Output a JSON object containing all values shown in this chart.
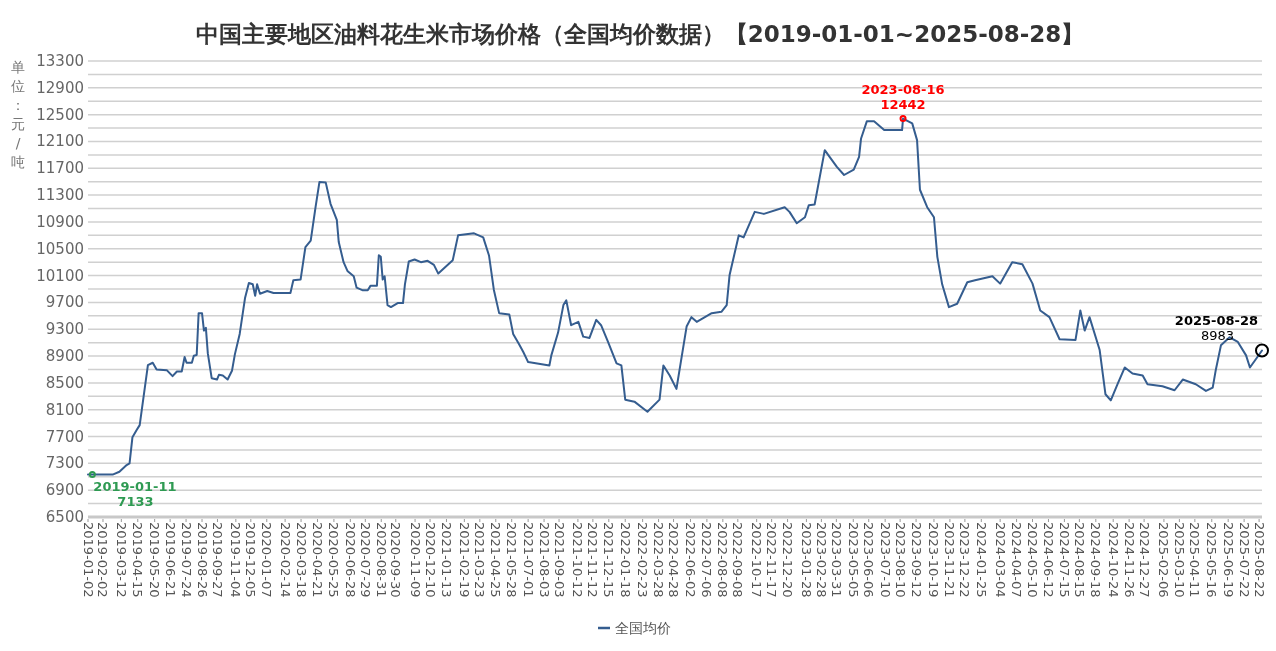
{
  "chart_data": {
    "type": "line",
    "title": "中国主要地区油料花生米市场价格（全国均价数据）【2019-01-01~2025-08-28】",
    "ylabel": "单位：元/吨",
    "x": [
      "2019-01-02",
      "2019-01-11",
      "2019-02-22",
      "2019-03-08",
      "2019-03-23",
      "2019-03-29",
      "2019-04-04",
      "2019-04-13",
      "2019-04-19",
      "2019-05-06",
      "2019-05-16",
      "2019-05-24",
      "2019-06-14",
      "2019-06-26",
      "2019-07-05",
      "2019-07-15",
      "2019-07-21",
      "2019-07-25",
      "2019-08-05",
      "2019-08-09",
      "2019-08-15",
      "2019-08-19",
      "2019-08-26",
      "2019-08-30",
      "2019-09-03",
      "2019-09-07",
      "2019-09-15",
      "2019-09-26",
      "2019-09-30",
      "2019-10-08",
      "2019-10-18",
      "2019-10-27",
      "2019-11-02",
      "2019-11-12",
      "2019-11-23",
      "2019-12-01",
      "2019-12-09",
      "2019-12-14",
      "2019-12-18",
      "2019-12-24",
      "2020-01-08",
      "2020-01-21",
      "2020-02-25",
      "2020-03-02",
      "2020-03-17",
      "2020-03-27",
      "2020-04-07",
      "2020-04-17",
      "2020-04-25",
      "2020-05-08",
      "2020-05-18",
      "2020-05-31",
      "2020-06-04",
      "2020-06-14",
      "2020-06-22",
      "2020-07-05",
      "2020-07-11",
      "2020-07-24",
      "2020-08-03",
      "2020-08-09",
      "2020-08-22",
      "2020-08-26",
      "2020-08-30",
      "2020-09-03",
      "2020-09-07",
      "2020-09-13",
      "2020-09-20",
      "2020-10-04",
      "2020-10-15",
      "2020-10-19",
      "2020-10-27",
      "2020-11-08",
      "2020-11-21",
      "2020-12-05",
      "2020-12-18",
      "2020-12-27",
      "2021-01-26",
      "2021-02-06",
      "2021-03-11",
      "2021-03-30",
      "2021-04-11",
      "2021-04-21",
      "2021-05-02",
      "2021-05-23",
      "2021-05-31",
      "2021-06-12",
      "2021-06-21",
      "2021-07-01",
      "2021-08-14",
      "2021-08-18",
      "2021-09-01",
      "2021-09-12",
      "2021-09-18",
      "2021-09-28",
      "2021-10-13",
      "2021-10-23",
      "2021-11-05",
      "2021-11-19",
      "2021-11-29",
      "2021-12-14",
      "2021-12-31",
      "2022-01-10",
      "2022-01-18",
      "2022-02-06",
      "2022-03-05",
      "2022-03-30",
      "2022-04-07",
      "2022-04-20",
      "2022-05-04",
      "2022-05-25",
      "2022-06-04",
      "2022-06-15",
      "2022-07-16",
      "2022-08-05",
      "2022-08-16",
      "2022-08-22",
      "2022-09-10",
      "2022-09-20",
      "2022-10-13",
      "2022-11-01",
      "2022-12-14",
      "2022-12-24",
      "2023-01-08",
      "2023-01-25",
      "2023-02-02",
      "2023-02-14",
      "2023-03-07",
      "2023-03-17",
      "2023-04-01",
      "2023-04-16",
      "2023-05-06",
      "2023-05-17",
      "2023-05-21",
      "2023-06-02",
      "2023-06-17",
      "2023-07-08",
      "2023-08-14",
      "2023-08-16",
      "2023-09-04",
      "2023-09-14",
      "2023-09-20",
      "2023-10-05",
      "2023-10-19",
      "2023-10-26",
      "2023-11-05",
      "2023-11-19",
      "2023-12-06",
      "2023-12-27",
      "2024-01-12",
      "2024-02-17",
      "2024-03-04",
      "2024-03-29",
      "2024-04-19",
      "2024-05-10",
      "2024-05-26",
      "2024-06-14",
      "2024-07-05",
      "2024-08-07",
      "2024-08-17",
      "2024-08-26",
      "2024-09-05",
      "2024-09-26",
      "2024-10-08",
      "2024-10-19",
      "2024-11-02",
      "2024-11-17",
      "2024-12-03",
      "2024-12-24",
      "2025-01-03",
      "2025-02-03",
      "2025-02-28",
      "2025-03-17",
      "2025-04-13",
      "2025-05-04",
      "2025-05-18",
      "2025-05-24",
      "2025-06-04",
      "2025-06-22",
      "2025-07-09",
      "2025-07-26",
      "2025-08-03",
      "2025-08-13",
      "2025-08-28"
    ],
    "series": [
      {
        "name": "全国均价",
        "color": "#355d8f",
        "values": [
          7133,
          7133,
          7133,
          7175,
          7275,
          7300,
          7690,
          7800,
          7870,
          8765,
          8800,
          8700,
          8690,
          8600,
          8670,
          8670,
          8885,
          8800,
          8800,
          8905,
          8915,
          9540,
          9540,
          9280,
          9320,
          8940,
          8570,
          8550,
          8620,
          8610,
          8550,
          8680,
          8925,
          9230,
          9765,
          9990,
          9970,
          9800,
          9970,
          9830,
          9870,
          9840,
          9840,
          10030,
          10040,
          10525,
          10620,
          11120,
          11495,
          11490,
          11170,
          10930,
          10600,
          10300,
          10170,
          10090,
          9920,
          9880,
          9880,
          9950,
          9950,
          10405,
          10380,
          10040,
          10090,
          9660,
          9630,
          9690,
          9690,
          9970,
          10310,
          10340,
          10300,
          10320,
          10260,
          10130,
          10330,
          10700,
          10730,
          10670,
          10400,
          9890,
          9540,
          9520,
          9230,
          9080,
          8960,
          8810,
          8760,
          8910,
          9250,
          9660,
          9730,
          9360,
          9410,
          9190,
          9170,
          9440,
          9360,
          9100,
          8790,
          8760,
          8250,
          8220,
          8070,
          8250,
          8760,
          8610,
          8410,
          9340,
          9480,
          9410,
          9540,
          9560,
          9660,
          10110,
          10700,
          10670,
          11050,
          11020,
          11120,
          11050,
          10880,
          10970,
          11150,
          11160,
          11970,
          11870,
          11720,
          11600,
          11680,
          11870,
          12140,
          12400,
          12400,
          12270,
          12270,
          12442,
          12370,
          12120,
          11380,
          11120,
          10970,
          10380,
          9970,
          9630,
          9680,
          10000,
          10030,
          10090,
          9980,
          10300,
          10270,
          9980,
          9580,
          9480,
          9150,
          9140,
          9580,
          9280,
          9480,
          8990,
          8330,
          8240,
          8480,
          8730,
          8640,
          8610,
          8480,
          8450,
          8390,
          8550,
          8480,
          8380,
          8430,
          8680,
          9060,
          9180,
          9110,
          8910,
          8730,
          8830,
          8983
        ]
      }
    ],
    "xlim": [
      "2019-01-02",
      "2025-08-28"
    ],
    "xticks": [
      "2019-01-02",
      "2019-02-02",
      "2019-03-12",
      "2019-04-15",
      "2019-05-20",
      "2019-06-21",
      "2019-07-24",
      "2019-08-26",
      "2019-09-27",
      "2019-11-04",
      "2019-12-05",
      "2020-01-07",
      "2020-02-14",
      "2020-03-18",
      "2020-04-21",
      "2020-05-25",
      "2020-06-28",
      "2020-07-29",
      "2020-08-31",
      "2020-09-30",
      "2020-11-09",
      "2020-12-10",
      "2021-01-13",
      "2021-02-19",
      "2021-03-23",
      "2021-04-25",
      "2021-05-28",
      "2021-07-01",
      "2021-08-03",
      "2021-09-03",
      "2021-10-12",
      "2021-11-12",
      "2021-12-15",
      "2022-01-18",
      "2022-02-23",
      "2022-03-28",
      "2022-04-28",
      "2022-06-02",
      "2022-07-06",
      "2022-08-08",
      "2022-09-08",
      "2022-10-17",
      "2022-11-17",
      "2022-12-20",
      "2023-01-28",
      "2023-02-28",
      "2023-03-31",
      "2023-05-05",
      "2023-06-06",
      "2023-07-10",
      "2023-08-10",
      "2023-09-12",
      "2023-10-19",
      "2023-11-21",
      "2023-12-22",
      "2024-01-25",
      "2024-03-04",
      "2024-04-07",
      "2024-05-10",
      "2024-06-12",
      "2024-07-15",
      "2024-08-15",
      "2024-09-18",
      "2024-10-24",
      "2024-11-26",
      "2024-12-27",
      "2025-02-06",
      "2025-03-10",
      "2025-04-11",
      "2025-05-16",
      "2025-06-19",
      "2025-07-22",
      "2025-08-22"
    ],
    "ylim": [
      6500,
      13300
    ],
    "yticks": [
      6500,
      {
        "value": 6700,
        "label": null
      },
      6900,
      {
        "value": 7100,
        "label": null
      },
      7300,
      {
        "value": 7500,
        "label": null
      },
      7700,
      {
        "value": 7900,
        "label": null
      },
      8100,
      {
        "value": 8300,
        "label": null
      },
      8500,
      {
        "value": 8700,
        "label": null
      },
      8900,
      {
        "value": 9100,
        "label": null
      },
      9300,
      {
        "value": 9500,
        "label": null
      },
      9700,
      {
        "value": 9900,
        "label": null
      },
      10100,
      {
        "value": 10300,
        "label": null
      },
      10500,
      {
        "value": 10700,
        "label": null
      },
      10900,
      {
        "value": 11100,
        "label": null
      },
      11300,
      {
        "value": 11500,
        "label": null
      },
      11700,
      {
        "value": 11900,
        "label": null
      },
      12100,
      {
        "value": 12300,
        "label": null
      },
      12500,
      {
        "value": 12700,
        "label": null
      },
      12900,
      {
        "value": 13100,
        "label": null
      },
      13300
    ],
    "annotations": [
      {
        "text": "2019-01-11\n7133",
        "x": "2019-01-11",
        "y": 7133
      },
      {
        "text": "2023-08-16\n12442",
        "x": "2023-08-16",
        "y": 12442
      },
      {
        "text": "2025-08-28\n8983",
        "x": "2025-08-28",
        "y": 8983
      }
    ],
    "grid": "y",
    "legend": "bottom",
    "marker": "none",
    "line_style": "solid"
  }
}
